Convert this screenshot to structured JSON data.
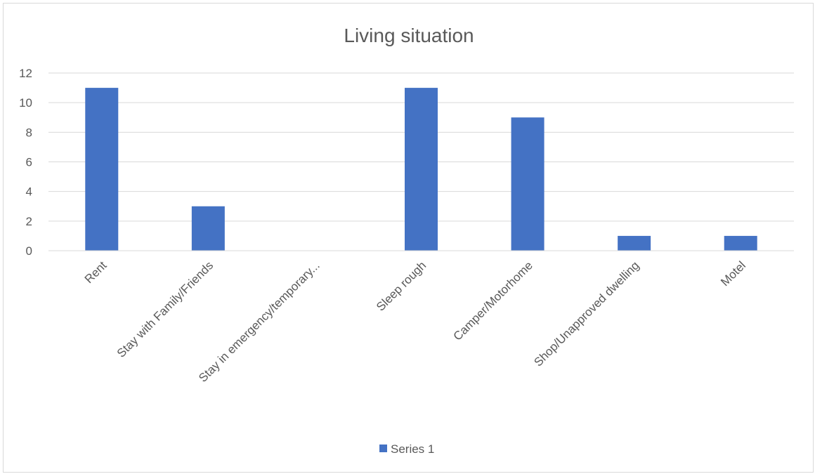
{
  "chart_data": {
    "type": "bar",
    "title": "Living situation",
    "xlabel": "",
    "ylabel": "",
    "categories": [
      "Rent",
      "Stay with Family/Friends",
      "Stay in emergency/temporary...",
      "Sleep rough",
      "Camper/Motorhome",
      "Shop/Unapproved dwelling",
      "Motel"
    ],
    "series": [
      {
        "name": "Series 1",
        "values": [
          11,
          3,
          0,
          11,
          9,
          1,
          1
        ],
        "color": "#4472c4"
      }
    ],
    "ylim": [
      0,
      12
    ],
    "yticks": [
      0,
      2,
      4,
      6,
      8,
      10,
      12
    ],
    "grid": true,
    "legend": "bottom"
  }
}
